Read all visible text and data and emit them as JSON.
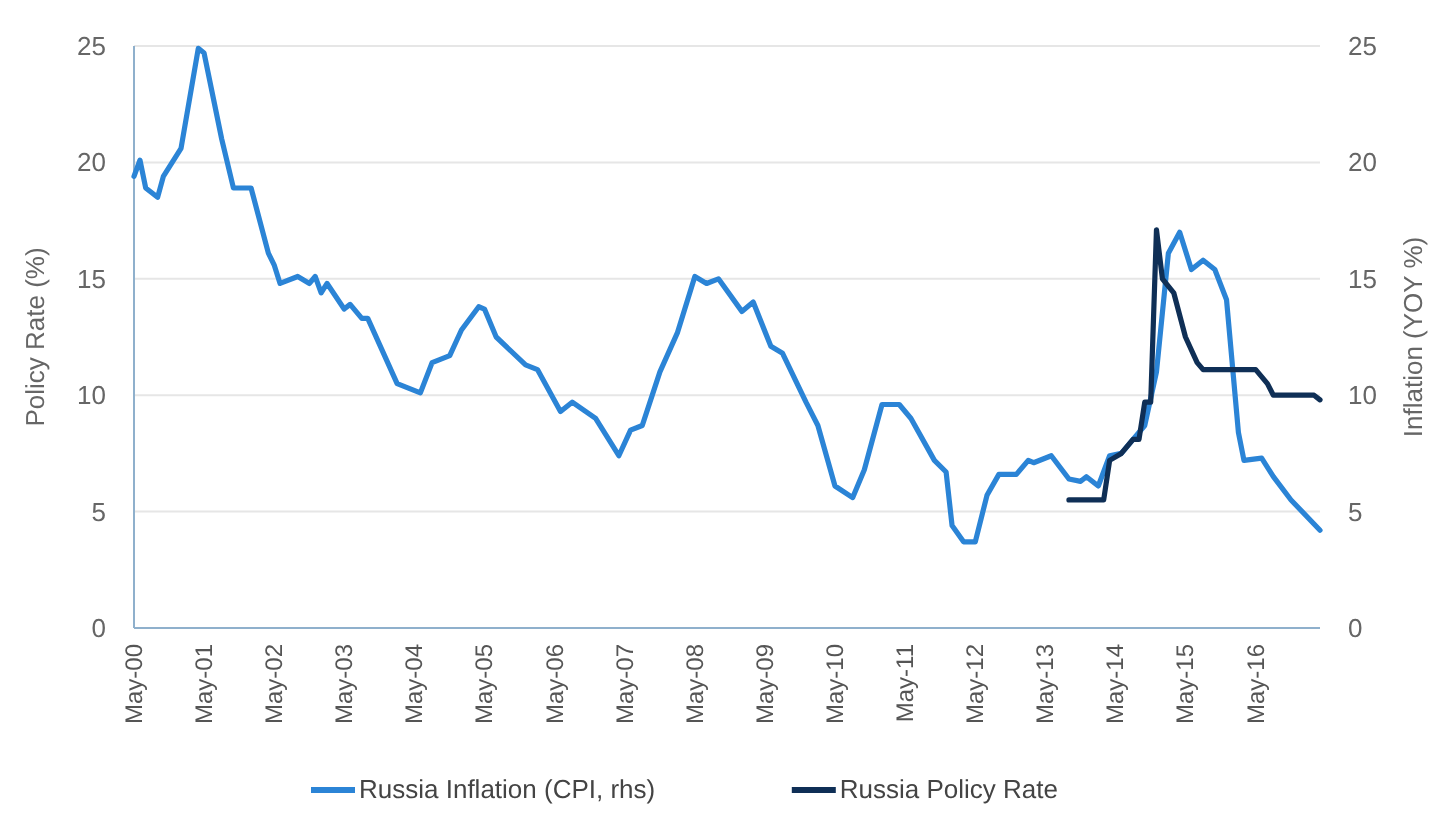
{
  "chart_data": {
    "type": "line",
    "ylabel": "Policy Rate (%)",
    "y2label": "Inflation (YOY %)",
    "xlim": [
      "2000-05",
      "2017-04"
    ],
    "xticks": [
      {
        "value": "2000-05",
        "label": "May-00"
      },
      {
        "value": "2001-05",
        "label": "May-01"
      },
      {
        "value": "2002-05",
        "label": "May-02"
      },
      {
        "value": "2003-05",
        "label": "May-03"
      },
      {
        "value": "2004-05",
        "label": "May-04"
      },
      {
        "value": "2005-05",
        "label": "May-05"
      },
      {
        "value": "2006-05",
        "label": "May-06"
      },
      {
        "value": "2007-05",
        "label": "May-07"
      },
      {
        "value": "2008-05",
        "label": "May-08"
      },
      {
        "value": "2009-05",
        "label": "May-09"
      },
      {
        "value": "2010-05",
        "label": "May-10"
      },
      {
        "value": "2011-05",
        "label": "May-11"
      },
      {
        "value": "2012-05",
        "label": "May-12"
      },
      {
        "value": "2013-05",
        "label": "May-13"
      },
      {
        "value": "2014-05",
        "label": "May-14"
      },
      {
        "value": "2015-05",
        "label": "May-15"
      },
      {
        "value": "2016-05",
        "label": "May-16"
      }
    ],
    "ylim": [
      0,
      25
    ],
    "yticks": [
      0,
      5,
      10,
      15,
      20,
      25
    ],
    "y2lim": [
      0,
      25
    ],
    "y2ticks": [
      0,
      5,
      10,
      15,
      20,
      25
    ],
    "grid": "y",
    "legend": "bottom",
    "line_style": "solid",
    "marker": "none",
    "series": [
      {
        "name": "Russia Inflation (CPI, rhs)",
        "color": "#2b84d6",
        "axis": "y2",
        "x": [
          "2000-05",
          "2000-06",
          "2000-07",
          "2000-09",
          "2000-10",
          "2001-01",
          "2001-04",
          "2001-05",
          "2001-08",
          "2001-10",
          "2002-01",
          "2002-04",
          "2002-05",
          "2002-06",
          "2002-09",
          "2002-11",
          "2002-12",
          "2003-01",
          "2003-02",
          "2003-05",
          "2003-06",
          "2003-08",
          "2003-09",
          "2004-02",
          "2004-06",
          "2004-08",
          "2004-11",
          "2005-01",
          "2005-04",
          "2005-05",
          "2005-07",
          "2005-12",
          "2006-02",
          "2006-06",
          "2006-08",
          "2006-12",
          "2007-04",
          "2007-06",
          "2007-08",
          "2007-11",
          "2008-02",
          "2008-05",
          "2008-07",
          "2008-09",
          "2009-01",
          "2009-03",
          "2009-06",
          "2009-08",
          "2009-12",
          "2010-02",
          "2010-05",
          "2010-08",
          "2010-10",
          "2011-01",
          "2011-04",
          "2011-06",
          "2011-10",
          "2011-12",
          "2012-01",
          "2012-03",
          "2012-05",
          "2012-07",
          "2012-09",
          "2012-12",
          "2013-02",
          "2013-03",
          "2013-06",
          "2013-09",
          "2013-11",
          "2013-12",
          "2014-02",
          "2014-04",
          "2014-06",
          "2014-10",
          "2014-12",
          "2015-02",
          "2015-04",
          "2015-06",
          "2015-08",
          "2015-10",
          "2015-12",
          "2016-02",
          "2016-03",
          "2016-06",
          "2016-08",
          "2016-11",
          "2017-04"
        ],
        "values": [
          19.4,
          20.1,
          18.9,
          18.5,
          19.4,
          20.6,
          24.9,
          24.7,
          21.0,
          18.9,
          18.9,
          16.1,
          15.6,
          14.8,
          15.1,
          14.8,
          15.1,
          14.4,
          14.8,
          13.7,
          13.9,
          13.3,
          13.3,
          10.5,
          10.1,
          11.4,
          11.7,
          12.8,
          13.8,
          13.7,
          12.5,
          11.3,
          11.1,
          9.3,
          9.7,
          9.0,
          7.4,
          8.5,
          8.7,
          11.0,
          12.7,
          15.1,
          14.8,
          15.0,
          13.6,
          14.0,
          12.1,
          11.8,
          9.7,
          8.7,
          6.1,
          5.6,
          6.8,
          9.6,
          9.6,
          9.0,
          7.2,
          6.7,
          4.4,
          3.7,
          3.7,
          5.7,
          6.6,
          6.6,
          7.2,
          7.1,
          7.4,
          6.4,
          6.3,
          6.5,
          6.1,
          7.4,
          7.5,
          8.7,
          11.0,
          16.1,
          17.0,
          15.4,
          15.8,
          15.4,
          14.1,
          8.4,
          7.2,
          7.3,
          6.5,
          5.5,
          4.2
        ]
      },
      {
        "name": "Russia Policy Rate",
        "color": "#0f2f56",
        "x": [
          "2013-09",
          "2014-03",
          "2014-04",
          "2014-06",
          "2014-08",
          "2014-09",
          "2014-10",
          "2014-11",
          "2014-12",
          "2015-01",
          "2015-03",
          "2015-05",
          "2015-07",
          "2015-08",
          "2016-05",
          "2016-07",
          "2016-08",
          "2017-03",
          "2017-04"
        ],
        "values": [
          5.5,
          5.5,
          7.2,
          7.5,
          8.1,
          8.1,
          9.7,
          9.7,
          17.1,
          15.0,
          14.4,
          12.5,
          11.4,
          11.1,
          11.1,
          10.5,
          10.0,
          10.0,
          9.8
        ]
      }
    ]
  }
}
